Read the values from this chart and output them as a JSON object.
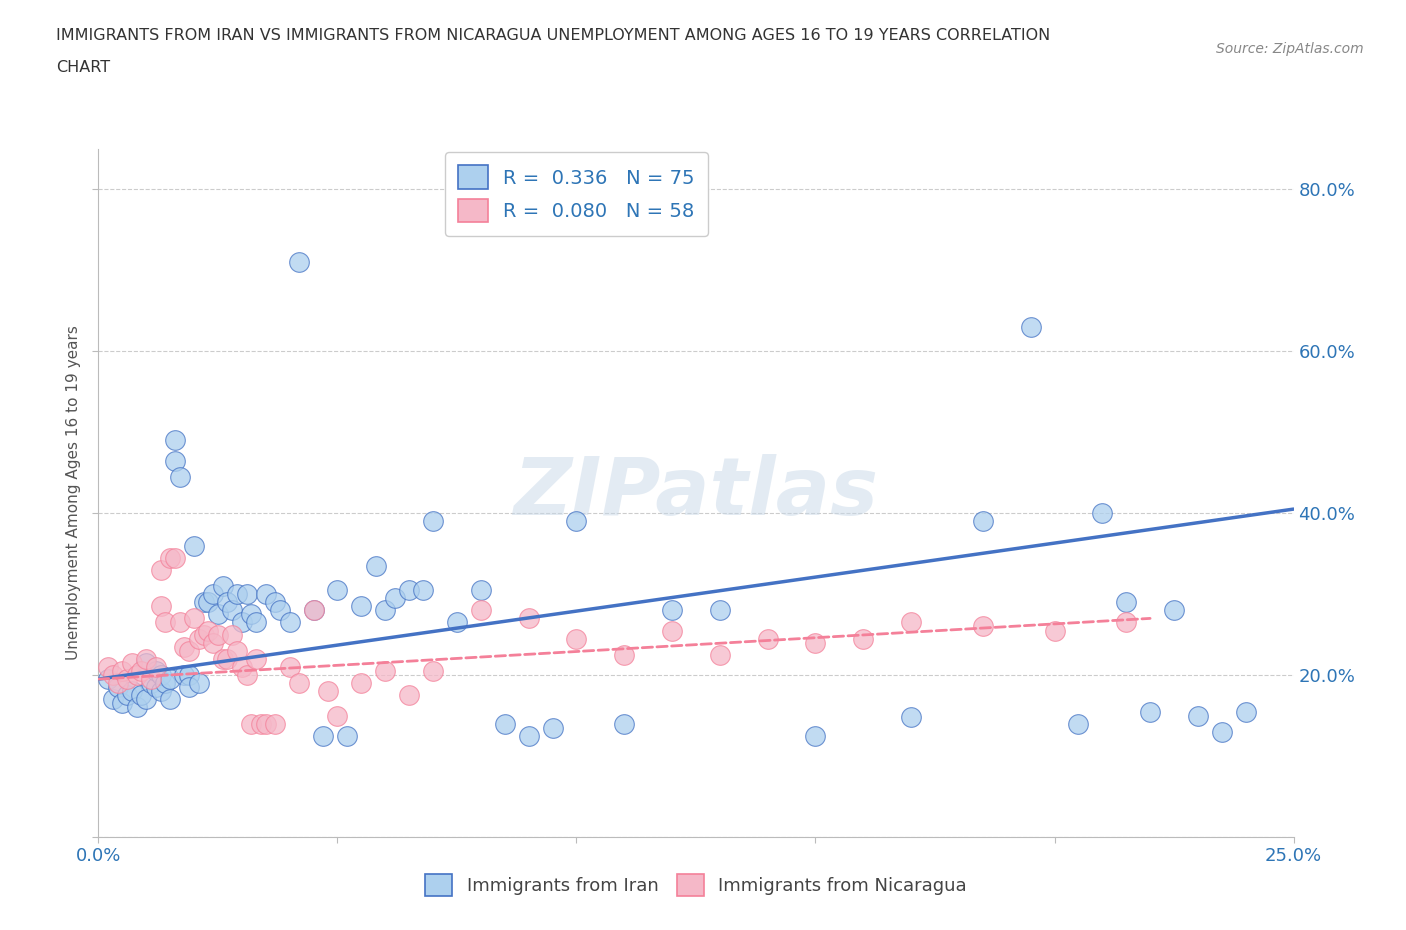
{
  "title_line1": "IMMIGRANTS FROM IRAN VS IMMIGRANTS FROM NICARAGUA UNEMPLOYMENT AMONG AGES 16 TO 19 YEARS CORRELATION",
  "title_line2": "CHART",
  "source_text": "Source: ZipAtlas.com",
  "ylabel": "Unemployment Among Ages 16 to 19 years",
  "xlim": [
    0.0,
    0.25
  ],
  "ylim": [
    0.0,
    0.85
  ],
  "xticks": [
    0.0,
    0.05,
    0.1,
    0.15,
    0.2,
    0.25
  ],
  "yticks": [
    0.0,
    0.2,
    0.4,
    0.6,
    0.8
  ],
  "xticklabels": [
    "0.0%",
    "",
    "",
    "",
    "",
    "25.0%"
  ],
  "yticklabels_right": [
    "",
    "20.0%",
    "40.0%",
    "60.0%",
    "80.0%"
  ],
  "iran_R": 0.336,
  "iran_N": 75,
  "nicaragua_R": 0.08,
  "nicaragua_N": 58,
  "iran_color": "#add0ee",
  "nicaragua_color": "#f5b8c8",
  "iran_line_color": "#4472c4",
  "nicaragua_line_color": "#f48099",
  "legend_text_color": "#2e75b6",
  "watermark": "ZIPatlas",
  "iran_x": [
    0.002,
    0.003,
    0.004,
    0.005,
    0.006,
    0.007,
    0.008,
    0.009,
    0.01,
    0.01,
    0.011,
    0.012,
    0.012,
    0.013,
    0.013,
    0.014,
    0.015,
    0.015,
    0.016,
    0.016,
    0.017,
    0.018,
    0.019,
    0.019,
    0.02,
    0.021,
    0.022,
    0.023,
    0.024,
    0.025,
    0.026,
    0.027,
    0.028,
    0.029,
    0.03,
    0.031,
    0.032,
    0.033,
    0.035,
    0.037,
    0.038,
    0.04,
    0.042,
    0.045,
    0.047,
    0.05,
    0.052,
    0.055,
    0.058,
    0.06,
    0.062,
    0.065,
    0.068,
    0.07,
    0.075,
    0.08,
    0.085,
    0.09,
    0.095,
    0.1,
    0.11,
    0.12,
    0.13,
    0.15,
    0.17,
    0.185,
    0.195,
    0.205,
    0.21,
    0.215,
    0.22,
    0.225,
    0.23,
    0.235,
    0.24
  ],
  "iran_y": [
    0.195,
    0.17,
    0.185,
    0.165,
    0.175,
    0.18,
    0.16,
    0.175,
    0.215,
    0.17,
    0.19,
    0.185,
    0.205,
    0.18,
    0.2,
    0.19,
    0.195,
    0.17,
    0.49,
    0.465,
    0.445,
    0.2,
    0.2,
    0.185,
    0.36,
    0.19,
    0.29,
    0.29,
    0.3,
    0.275,
    0.31,
    0.29,
    0.28,
    0.3,
    0.265,
    0.3,
    0.275,
    0.265,
    0.3,
    0.29,
    0.28,
    0.265,
    0.71,
    0.28,
    0.125,
    0.305,
    0.125,
    0.285,
    0.335,
    0.28,
    0.295,
    0.305,
    0.305,
    0.39,
    0.265,
    0.305,
    0.14,
    0.125,
    0.135,
    0.39,
    0.14,
    0.28,
    0.28,
    0.125,
    0.148,
    0.39,
    0.63,
    0.14,
    0.4,
    0.29,
    0.155,
    0.28,
    0.15,
    0.13,
    0.155
  ],
  "nicaragua_x": [
    0.002,
    0.003,
    0.004,
    0.005,
    0.006,
    0.007,
    0.008,
    0.009,
    0.01,
    0.011,
    0.012,
    0.013,
    0.013,
    0.014,
    0.015,
    0.016,
    0.017,
    0.018,
    0.019,
    0.02,
    0.021,
    0.022,
    0.023,
    0.024,
    0.025,
    0.026,
    0.027,
    0.028,
    0.029,
    0.03,
    0.031,
    0.032,
    0.033,
    0.034,
    0.035,
    0.037,
    0.04,
    0.042,
    0.045,
    0.048,
    0.05,
    0.055,
    0.06,
    0.065,
    0.07,
    0.08,
    0.09,
    0.1,
    0.11,
    0.12,
    0.13,
    0.14,
    0.15,
    0.16,
    0.17,
    0.185,
    0.2,
    0.215
  ],
  "nicaragua_y": [
    0.21,
    0.2,
    0.19,
    0.205,
    0.195,
    0.215,
    0.2,
    0.205,
    0.22,
    0.195,
    0.21,
    0.33,
    0.285,
    0.265,
    0.345,
    0.345,
    0.265,
    0.235,
    0.23,
    0.27,
    0.245,
    0.25,
    0.255,
    0.24,
    0.25,
    0.22,
    0.22,
    0.25,
    0.23,
    0.21,
    0.2,
    0.14,
    0.22,
    0.14,
    0.14,
    0.14,
    0.21,
    0.19,
    0.28,
    0.18,
    0.15,
    0.19,
    0.205,
    0.175,
    0.205,
    0.28,
    0.27,
    0.245,
    0.225,
    0.255,
    0.225,
    0.245,
    0.24,
    0.245,
    0.265,
    0.26,
    0.255,
    0.265
  ],
  "iran_trendline_x": [
    0.0,
    0.25
  ],
  "iran_trendline_y": [
    0.195,
    0.405
  ],
  "nica_trendline_x": [
    0.0,
    0.22
  ],
  "nica_trendline_y": [
    0.195,
    0.27
  ]
}
